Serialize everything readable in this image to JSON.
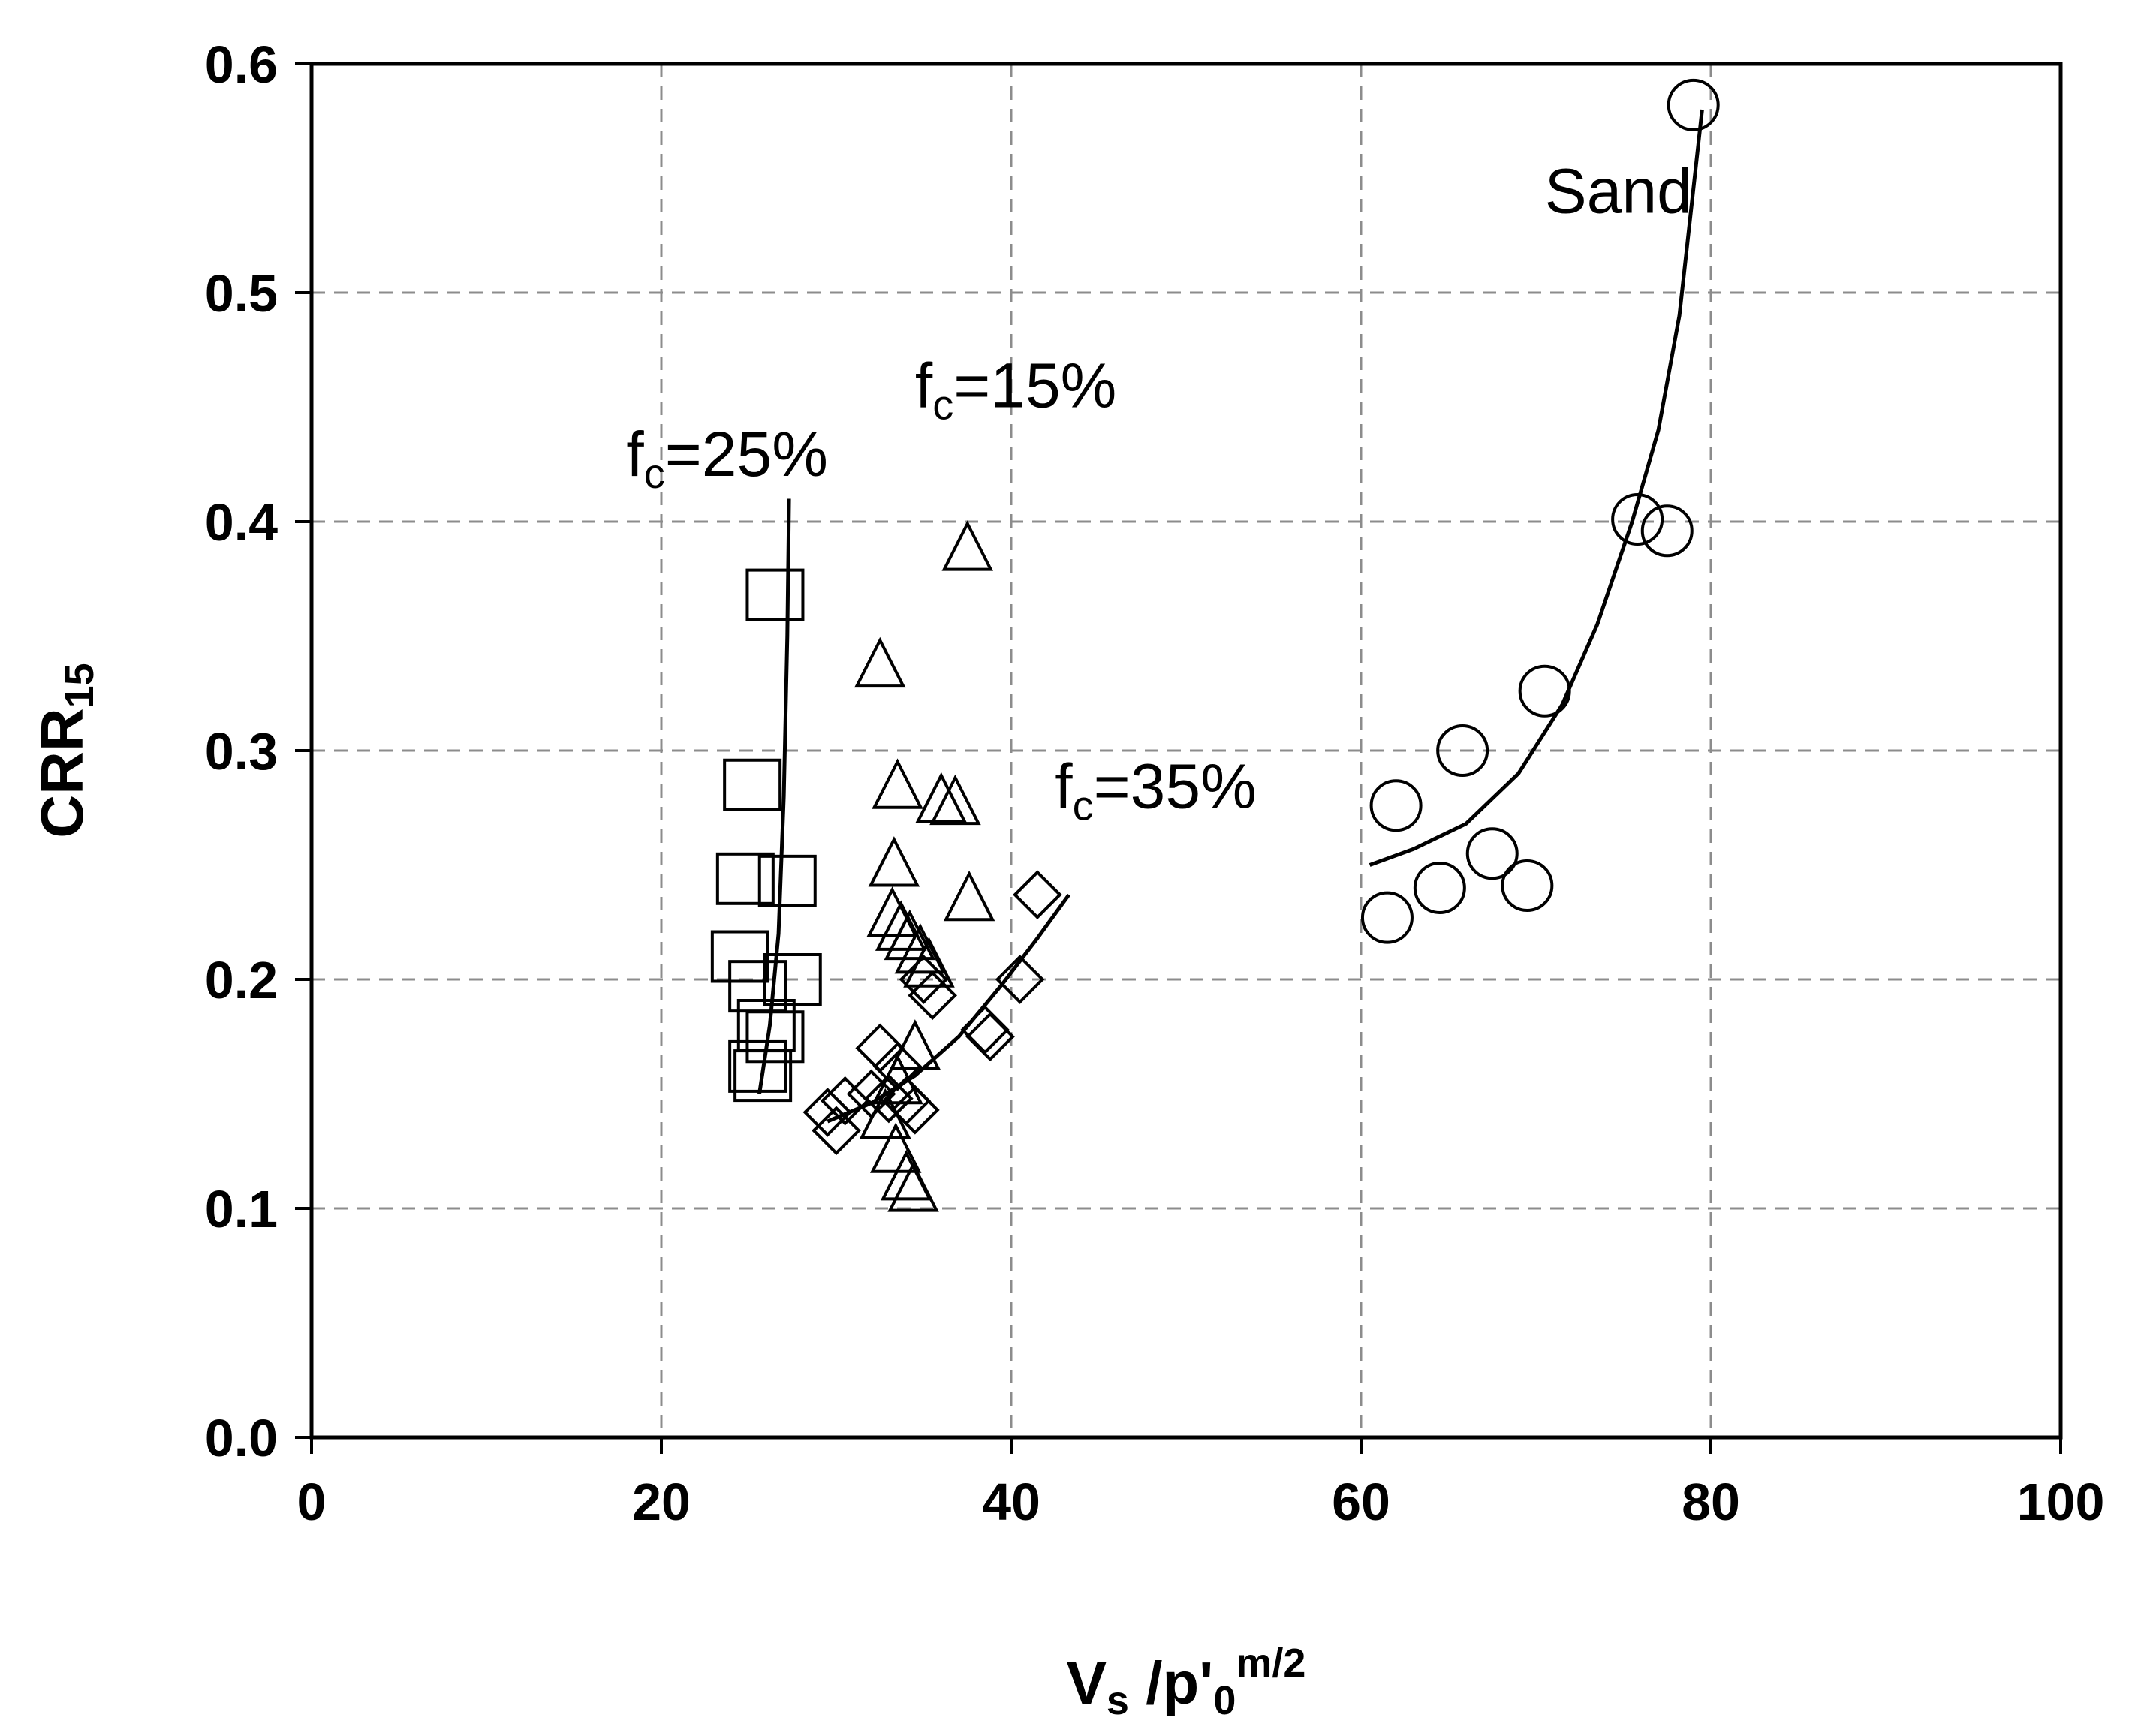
{
  "chart_data": {
    "type": "scatter",
    "title": "",
    "xlabel": "V_s /p'_0^(m/2)",
    "xlabel_parts": {
      "v": "V",
      "v_sub": "s",
      "slash": " /p'",
      "p_sub": "0",
      "sup": "m/2"
    },
    "ylabel": "CRR15",
    "ylabel_parts": {
      "main": "CRR",
      "sub": "15"
    },
    "xlim": [
      0,
      100
    ],
    "ylim": [
      0.0,
      0.6
    ],
    "xticks": [
      0,
      20,
      40,
      60,
      80,
      100
    ],
    "xtick_labels": [
      "0",
      "20",
      "40",
      "60",
      "80",
      "100"
    ],
    "yticks": [
      0.0,
      0.1,
      0.2,
      0.3,
      0.4,
      0.5,
      0.6
    ],
    "ytick_labels": [
      "0.0",
      "0.1",
      "0.2",
      "0.3",
      "0.4",
      "0.5",
      "0.6"
    ],
    "grid": true,
    "legend": "none",
    "annotations": [
      {
        "text": "Sand",
        "x": 70.5,
        "y": 0.535
      },
      {
        "text_main": "f",
        "text_sub": "c",
        "text_rest": "=25%",
        "x": 18.0,
        "y": 0.42
      },
      {
        "text_main": "f",
        "text_sub": "c",
        "text_rest": "=15%",
        "x": 34.5,
        "y": 0.45
      },
      {
        "text_main": "f",
        "text_sub": "c",
        "text_rest": "=35%",
        "x": 42.5,
        "y": 0.275
      }
    ],
    "series": [
      {
        "marker": "circle",
        "points": [
          [
            79.0,
            0.582
          ],
          [
            75.8,
            0.401
          ],
          [
            77.5,
            0.396
          ],
          [
            70.5,
            0.326
          ],
          [
            65.8,
            0.3
          ],
          [
            62.0,
            0.276
          ],
          [
            67.5,
            0.255
          ],
          [
            64.5,
            0.24
          ],
          [
            69.5,
            0.241
          ],
          [
            61.5,
            0.227
          ]
        ],
        "fit": [
          [
            60.5,
            0.25
          ],
          [
            63,
            0.257
          ],
          [
            66,
            0.268
          ],
          [
            69,
            0.29
          ],
          [
            71.5,
            0.32
          ],
          [
            73.5,
            0.355
          ],
          [
            75.5,
            0.4
          ],
          [
            77,
            0.44
          ],
          [
            78.2,
            0.49
          ],
          [
            79.5,
            0.58
          ]
        ]
      },
      {
        "marker": "square",
        "points": [
          [
            26.5,
            0.368
          ],
          [
            25.2,
            0.285
          ],
          [
            24.8,
            0.244
          ],
          [
            27.2,
            0.243
          ],
          [
            24.5,
            0.21
          ],
          [
            25.5,
            0.197
          ],
          [
            27.5,
            0.2
          ],
          [
            26.0,
            0.18
          ],
          [
            26.5,
            0.175
          ],
          [
            25.5,
            0.162
          ],
          [
            25.8,
            0.158
          ]
        ],
        "fit": [
          [
            25.6,
            0.15
          ],
          [
            26.2,
            0.18
          ],
          [
            26.7,
            0.22
          ],
          [
            27.0,
            0.28
          ],
          [
            27.2,
            0.35
          ],
          [
            27.3,
            0.41
          ]
        ]
      },
      {
        "marker": "triangle",
        "points": [
          [
            37.5,
            0.388
          ],
          [
            32.5,
            0.337
          ],
          [
            33.5,
            0.284
          ],
          [
            36.0,
            0.278
          ],
          [
            36.8,
            0.277
          ],
          [
            33.3,
            0.25
          ],
          [
            37.6,
            0.235
          ],
          [
            33.2,
            0.228
          ],
          [
            33.7,
            0.222
          ],
          [
            34.2,
            0.218
          ],
          [
            34.8,
            0.212
          ],
          [
            35.3,
            0.206
          ],
          [
            34.5,
            0.17
          ],
          [
            33.5,
            0.155
          ],
          [
            32.8,
            0.14
          ],
          [
            33.4,
            0.125
          ],
          [
            34.0,
            0.113
          ],
          [
            34.4,
            0.108
          ]
        ],
        "fit": []
      },
      {
        "marker": "diamond",
        "points": [
          [
            41.5,
            0.237
          ],
          [
            40.5,
            0.2
          ],
          [
            35.0,
            0.2
          ],
          [
            35.5,
            0.193
          ],
          [
            38.5,
            0.178
          ],
          [
            38.8,
            0.175
          ],
          [
            32.5,
            0.17
          ],
          [
            33.5,
            0.162
          ],
          [
            32.0,
            0.15
          ],
          [
            33.0,
            0.148
          ],
          [
            34.0,
            0.147
          ],
          [
            34.5,
            0.143
          ],
          [
            29.5,
            0.142
          ],
          [
            30.5,
            0.147
          ],
          [
            30.0,
            0.134
          ]
        ],
        "fit": [
          [
            29.5,
            0.138
          ],
          [
            32,
            0.146
          ],
          [
            34.5,
            0.158
          ],
          [
            37,
            0.175
          ],
          [
            39.5,
            0.198
          ],
          [
            41.5,
            0.218
          ],
          [
            43.3,
            0.237
          ]
        ]
      }
    ]
  }
}
